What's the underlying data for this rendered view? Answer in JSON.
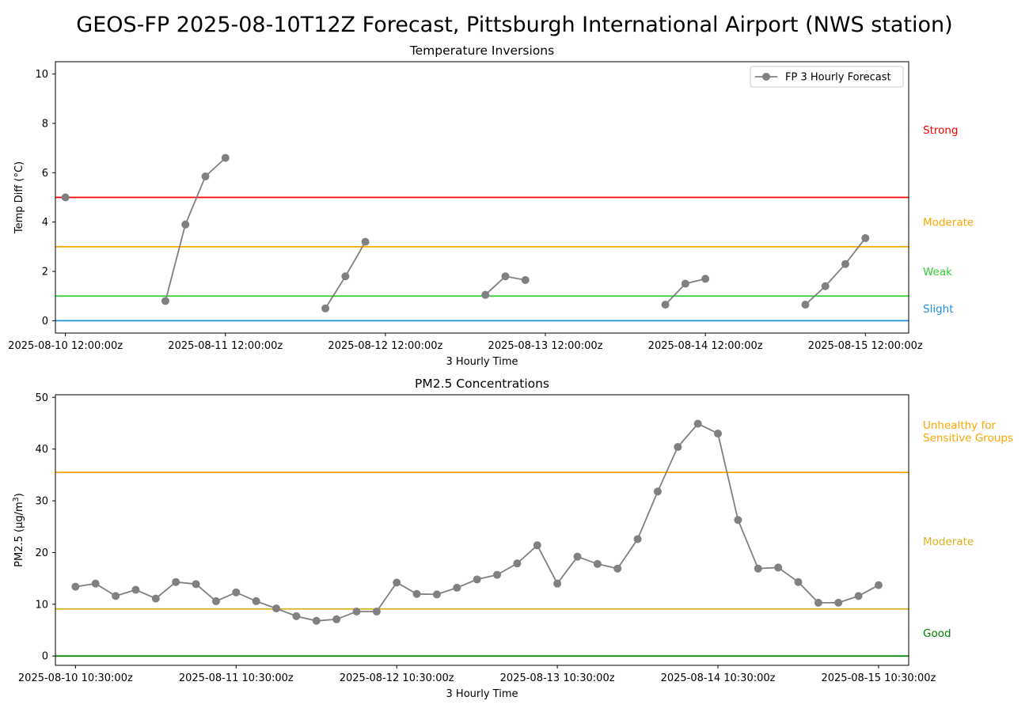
{
  "suptitle": "GEOS-FP 2025-08-10T12Z Forecast, Pittsburgh International Airport (NWS station)",
  "chart_data": [
    {
      "type": "line",
      "title": "Temperature Inversions",
      "xlabel": "3 Hourly Time",
      "ylabel": "Temp Diff (°C)",
      "ylim": [
        -0.5,
        10.5
      ],
      "yticks": [
        0,
        2,
        4,
        6,
        8,
        10
      ],
      "xlim_hours": [
        -1.5,
        126.5
      ],
      "xticks": [
        {
          "label": "2025-08-10 12:00:00z",
          "hour": 0
        },
        {
          "label": "2025-08-11 12:00:00z",
          "hour": 24
        },
        {
          "label": "2025-08-12 12:00:00z",
          "hour": 48
        },
        {
          "label": "2025-08-13 12:00:00z",
          "hour": 72
        },
        {
          "label": "2025-08-14 12:00:00z",
          "hour": 96
        },
        {
          "label": "2025-08-15 12:00:00z",
          "hour": 120
        }
      ],
      "legend": {
        "label": "FP 3 Hourly Forecast",
        "position": "upper right"
      },
      "series_color": "#808080",
      "segments": [
        [
          [
            0,
            5.0
          ]
        ],
        [
          [
            15,
            0.8
          ],
          [
            18,
            3.9
          ],
          [
            21,
            5.85
          ],
          [
            24,
            6.6
          ]
        ],
        [
          [
            39,
            0.5
          ],
          [
            42,
            1.8
          ],
          [
            45,
            3.2
          ]
        ],
        [
          [
            63,
            1.05
          ],
          [
            66,
            1.8
          ],
          [
            69,
            1.65
          ]
        ],
        [
          [
            90,
            0.65
          ],
          [
            93,
            1.5
          ],
          [
            96,
            1.7
          ]
        ],
        [
          [
            111,
            0.65
          ],
          [
            114,
            1.4
          ],
          [
            117,
            2.3
          ],
          [
            120,
            3.35
          ]
        ]
      ],
      "thresholds": [
        {
          "y": 0,
          "color": "#1f8ee5",
          "label": "Slight",
          "label_y": 0.5
        },
        {
          "y": 1,
          "color": "#32cd32",
          "label": "Weak",
          "label_y": 2.0
        },
        {
          "y": 3,
          "color": "#ffa500",
          "label": "Moderate",
          "label_y": 4.0
        },
        {
          "y": 5,
          "color": "#ff0000",
          "label": "Strong",
          "label_y": 7.75
        }
      ]
    },
    {
      "type": "line",
      "title": "PM2.5 Concentrations",
      "xlabel": "3 Hourly Time",
      "ylabel": "PM2.5 (µg/m3)",
      "ylim": [
        -1.8,
        50.5
      ],
      "yticks": [
        0,
        10,
        20,
        30,
        40,
        50
      ],
      "xlim_hours": [
        -3.0,
        124.5
      ],
      "xticks": [
        {
          "label": "2025-08-10 10:30:00z",
          "hour": 0
        },
        {
          "label": "2025-08-11 10:30:00z",
          "hour": 24
        },
        {
          "label": "2025-08-12 10:30:00z",
          "hour": 48
        },
        {
          "label": "2025-08-13 10:30:00z",
          "hour": 72
        },
        {
          "label": "2025-08-14 10:30:00z",
          "hour": 96
        },
        {
          "label": "2025-08-15 10:30:00z",
          "hour": 120
        }
      ],
      "series_color": "#808080",
      "x_step_hours": 3,
      "values": [
        13.4,
        14.0,
        11.6,
        12.8,
        11.1,
        14.3,
        13.9,
        10.6,
        12.3,
        10.6,
        9.2,
        7.7,
        6.8,
        7.1,
        8.6,
        8.6,
        14.2,
        12.0,
        11.9,
        13.2,
        14.8,
        15.7,
        17.9,
        21.4,
        14.0,
        19.2,
        17.8,
        16.9,
        22.6,
        31.8,
        40.4,
        44.9,
        43.0,
        26.3,
        16.9,
        17.1,
        14.3,
        10.3,
        10.3,
        11.6,
        13.7
      ],
      "thresholds": [
        {
          "y": 0,
          "color": "#008000",
          "label": "Good",
          "label_y": 4.5
        },
        {
          "y": 9.1,
          "color": "#dab01a",
          "label": "Moderate",
          "label_y": 22.2
        },
        {
          "y": 35.5,
          "color": "#ffa500",
          "label": "Unhealthy for\nSensitive Groups",
          "label_y": 43.5
        }
      ]
    }
  ]
}
